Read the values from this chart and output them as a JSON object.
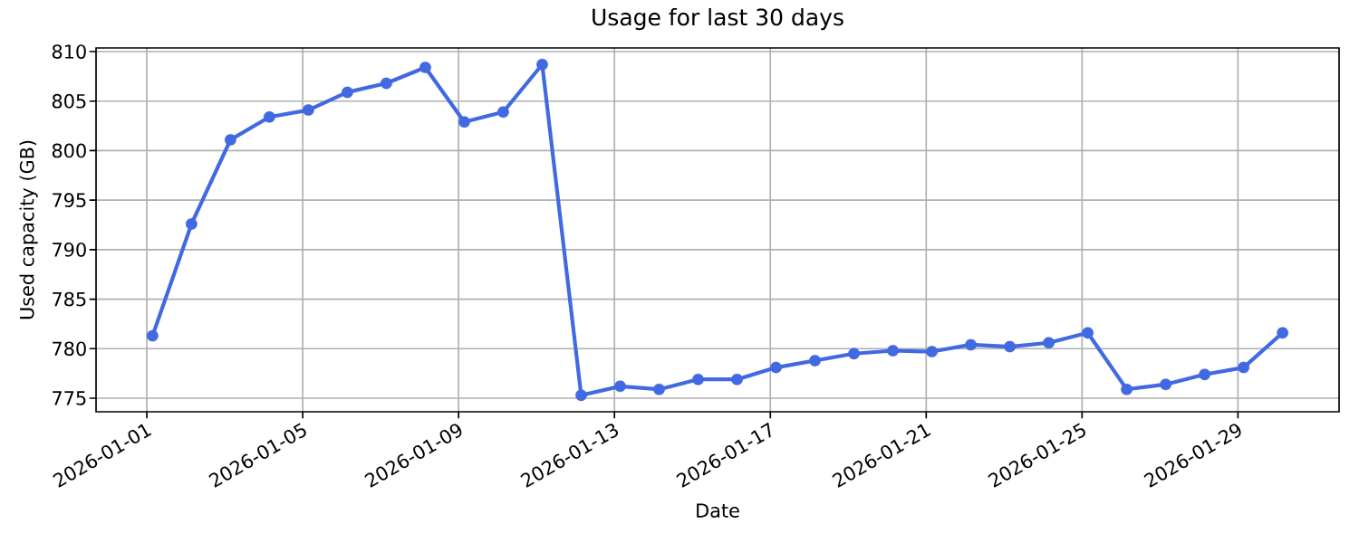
{
  "chart_data": {
    "type": "line",
    "title": "Usage for last 30 days",
    "xlabel": "Date",
    "ylabel": "Used capacity (GB)",
    "x": [
      "2026-01-01T03:30",
      "2026-01-02T03:30",
      "2026-01-03T03:30",
      "2026-01-04T03:30",
      "2026-01-05T03:30",
      "2026-01-06T03:30",
      "2026-01-07T03:30",
      "2026-01-08T03:30",
      "2026-01-09T03:30",
      "2026-01-10T03:30",
      "2026-01-11T03:30",
      "2026-01-12T03:30",
      "2026-01-13T03:30",
      "2026-01-14T03:30",
      "2026-01-15T03:30",
      "2026-01-16T03:30",
      "2026-01-17T03:30",
      "2026-01-18T03:30",
      "2026-01-19T03:30",
      "2026-01-20T03:30",
      "2026-01-21T03:30",
      "2026-01-22T03:30",
      "2026-01-23T03:30",
      "2026-01-24T03:30",
      "2026-01-25T03:30",
      "2026-01-26T03:30",
      "2026-01-27T03:30",
      "2026-01-28T03:30",
      "2026-01-29T03:30",
      "2026-01-30T03:30"
    ],
    "values": [
      781.3,
      792.6,
      801.1,
      803.4,
      804.1,
      805.9,
      806.8,
      808.4,
      802.9,
      803.9,
      808.7,
      775.3,
      776.2,
      775.9,
      776.9,
      776.9,
      778.1,
      778.8,
      779.5,
      779.8,
      779.7,
      780.4,
      780.2,
      780.6,
      781.6,
      775.9,
      776.4,
      777.4,
      778.1,
      781.6
    ],
    "color": "#4169e1",
    "marker": "circle",
    "line_style": "solid",
    "grid": true,
    "xlim": [
      "2025-12-30T16:42",
      "2026-01-31T14:18"
    ],
    "xticks": [
      "2026-01-01",
      "2026-01-05",
      "2026-01-09",
      "2026-01-13",
      "2026-01-17",
      "2026-01-21",
      "2026-01-25",
      "2026-01-29"
    ],
    "ylim": [
      773.63,
      810.37
    ],
    "yticks": [
      775,
      780,
      785,
      790,
      795,
      800,
      805,
      810
    ]
  }
}
